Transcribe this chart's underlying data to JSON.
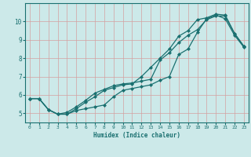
{
  "xlabel": "Humidex (Indice chaleur)",
  "ylabel": "",
  "xlim": [
    -0.5,
    23.5
  ],
  "ylim": [
    4.5,
    11.0
  ],
  "bg_color": "#cce9e9",
  "grid_color": "#add0d0",
  "line_color": "#1a7070",
  "xticks": [
    0,
    1,
    2,
    3,
    4,
    5,
    6,
    7,
    8,
    9,
    10,
    11,
    12,
    13,
    14,
    15,
    16,
    17,
    18,
    19,
    20,
    21,
    22,
    23
  ],
  "yticks": [
    5,
    6,
    7,
    8,
    9,
    10
  ],
  "line1_x": [
    0,
    1,
    2,
    3,
    4,
    5,
    6,
    7,
    8,
    9,
    10,
    11,
    12,
    13,
    14,
    15,
    16,
    17,
    18,
    19,
    20,
    21,
    22,
    23
  ],
  "line1_y": [
    5.8,
    5.8,
    5.2,
    4.95,
    4.95,
    5.15,
    5.25,
    5.35,
    5.45,
    5.9,
    6.25,
    6.35,
    6.45,
    6.55,
    6.8,
    7.0,
    8.2,
    8.5,
    9.4,
    10.15,
    10.35,
    10.15,
    9.25,
    8.6
  ],
  "line2_x": [
    0,
    1,
    2,
    3,
    4,
    5,
    6,
    7,
    8,
    9,
    10,
    11,
    12,
    13,
    14,
    15,
    16,
    17,
    18,
    19,
    20,
    21,
    22,
    23
  ],
  "line2_y": [
    5.8,
    5.8,
    5.2,
    4.95,
    4.95,
    5.25,
    5.6,
    5.9,
    6.25,
    6.4,
    6.55,
    6.6,
    7.0,
    7.5,
    8.0,
    8.5,
    9.2,
    9.5,
    10.1,
    10.2,
    10.4,
    10.35,
    9.35,
    8.65
  ],
  "line3_x": [
    0,
    1,
    2,
    3,
    4,
    5,
    6,
    7,
    8,
    9,
    10,
    11,
    12,
    13,
    14,
    15,
    16,
    17,
    18,
    19,
    20,
    21,
    22,
    23
  ],
  "line3_y": [
    5.8,
    5.8,
    5.2,
    4.95,
    5.05,
    5.35,
    5.7,
    6.1,
    6.3,
    6.5,
    6.6,
    6.65,
    6.75,
    6.85,
    7.9,
    8.3,
    8.85,
    9.25,
    9.55,
    10.1,
    10.3,
    10.3,
    9.35,
    8.65
  ]
}
